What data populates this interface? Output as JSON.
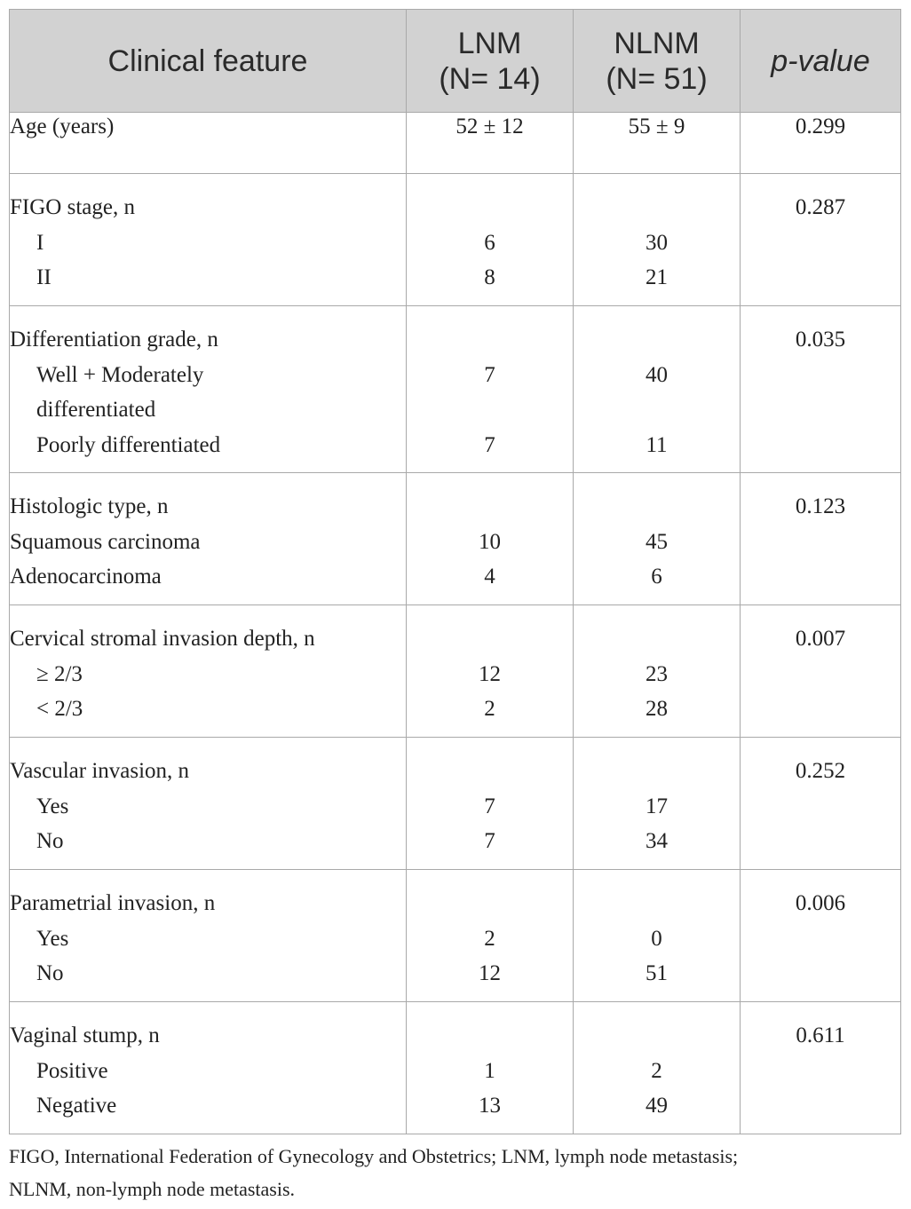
{
  "table": {
    "headers": {
      "feature": "Clinical feature",
      "lnm_line1": "LNM",
      "lnm_line2": "(N= 14)",
      "nlnm_line1": "NLNM",
      "nlnm_line2": "(N= 51)",
      "pvalue": "p-value"
    },
    "age": {
      "label": "Age (years)",
      "lnm": "52 ± 12",
      "nlnm": "55 ± 9",
      "p": "0.299"
    },
    "figo": {
      "label": "FIGO stage, n",
      "p": "0.287",
      "rows": [
        {
          "label": "I",
          "lnm": "6",
          "nlnm": "30"
        },
        {
          "label": "II",
          "lnm": "8",
          "nlnm": "21"
        }
      ]
    },
    "diff": {
      "label": "Differentiation grade, n",
      "p": "0.035",
      "row1_label_a": "Well + Moderately",
      "row1_label_b": "differentiated",
      "row1_lnm": "7",
      "row1_nlnm": "40",
      "row2_label": "Poorly differentiated",
      "row2_lnm": "7",
      "row2_nlnm": "11"
    },
    "histo": {
      "label": "Histologic type, n",
      "p": "0.123",
      "rows": [
        {
          "label": "Squamous carcinoma",
          "lnm": "10",
          "nlnm": "45"
        },
        {
          "label": "Adenocarcinoma",
          "lnm": "4",
          "nlnm": "6"
        }
      ]
    },
    "stromal": {
      "label": "Cervical stromal invasion depth, n",
      "p": "0.007",
      "rows": [
        {
          "label": "≥ 2/3",
          "lnm": "12",
          "nlnm": "23"
        },
        {
          "label": "< 2/3",
          "lnm": "2",
          "nlnm": "28"
        }
      ]
    },
    "vascular": {
      "label": "Vascular invasion, n",
      "p": "0.252",
      "rows": [
        {
          "label": "Yes",
          "lnm": "7",
          "nlnm": "17"
        },
        {
          "label": "No",
          "lnm": "7",
          "nlnm": "34"
        }
      ]
    },
    "parametrial": {
      "label": "Parametrial invasion, n",
      "p": "0.006",
      "rows": [
        {
          "label": "Yes",
          "lnm": "2",
          "nlnm": "0"
        },
        {
          "label": "No",
          "lnm": "12",
          "nlnm": "51"
        }
      ]
    },
    "vaginal": {
      "label": "Vaginal stump, n",
      "p": "0.611",
      "rows": [
        {
          "label": "Positive",
          "lnm": "1",
          "nlnm": "2"
        },
        {
          "label": "Negative",
          "lnm": "13",
          "nlnm": "49"
        }
      ]
    }
  },
  "footnote": {
    "line1": "FIGO, International Federation of Gynecology and Obstetrics; LNM, lymph node metastasis;",
    "line2": "NLNM, non-lymph node metastasis."
  }
}
